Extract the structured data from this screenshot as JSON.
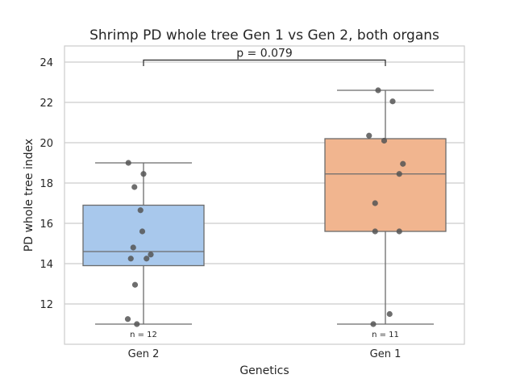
{
  "chart_data": {
    "type": "box",
    "title": "Shrimp PD whole tree Gen 1 vs Gen 2, both organs",
    "xlabel": "Genetics",
    "ylabel": "PD whole tree index",
    "ylim": [
      10.0,
      24.8
    ],
    "yticks": [
      12,
      14,
      16,
      18,
      20,
      22,
      24
    ],
    "grid": "horizontal",
    "categories": [
      "Gen 2",
      "Gen 1"
    ],
    "box_colors": [
      "#a8c8ec",
      "#f1b58f"
    ],
    "line_color": "#6b6b6b",
    "point_color": "#555555",
    "grid_color": "#cccccc",
    "frame_color": "#cccccc",
    "boxes": [
      {
        "category": "Gen 2",
        "whisker_low": 11.0,
        "q1": 13.9,
        "median": 14.6,
        "q3": 16.9,
        "whisker_high": 19.0,
        "n_label": "n = 12"
      },
      {
        "category": "Gen 1",
        "whisker_low": 11.0,
        "q1": 15.6,
        "median": 18.45,
        "q3": 20.2,
        "whisker_high": 22.6,
        "n_label": "n = 11"
      }
    ],
    "points": [
      {
        "category": "Gen 2",
        "values": [
          19.0,
          18.45,
          17.8,
          16.65,
          15.6,
          14.8,
          14.45,
          14.25,
          14.25,
          12.95,
          11.25,
          11.0
        ],
        "jitter": [
          -0.25,
          0.0,
          -0.15,
          -0.05,
          -0.02,
          -0.17,
          0.12,
          -0.21,
          0.05,
          -0.14,
          -0.26,
          -0.11
        ]
      },
      {
        "category": "Gen 1",
        "values": [
          22.6,
          22.05,
          20.35,
          20.1,
          18.95,
          18.45,
          17.0,
          15.6,
          15.6,
          11.5,
          11.0
        ],
        "jitter": [
          -0.12,
          0.12,
          -0.27,
          -0.02,
          0.29,
          0.23,
          -0.17,
          -0.17,
          0.23,
          0.07,
          -0.2
        ]
      }
    ],
    "annotation": {
      "text": "p = 0.079",
      "y": 24.1,
      "tick_bottom": 23.8
    }
  }
}
